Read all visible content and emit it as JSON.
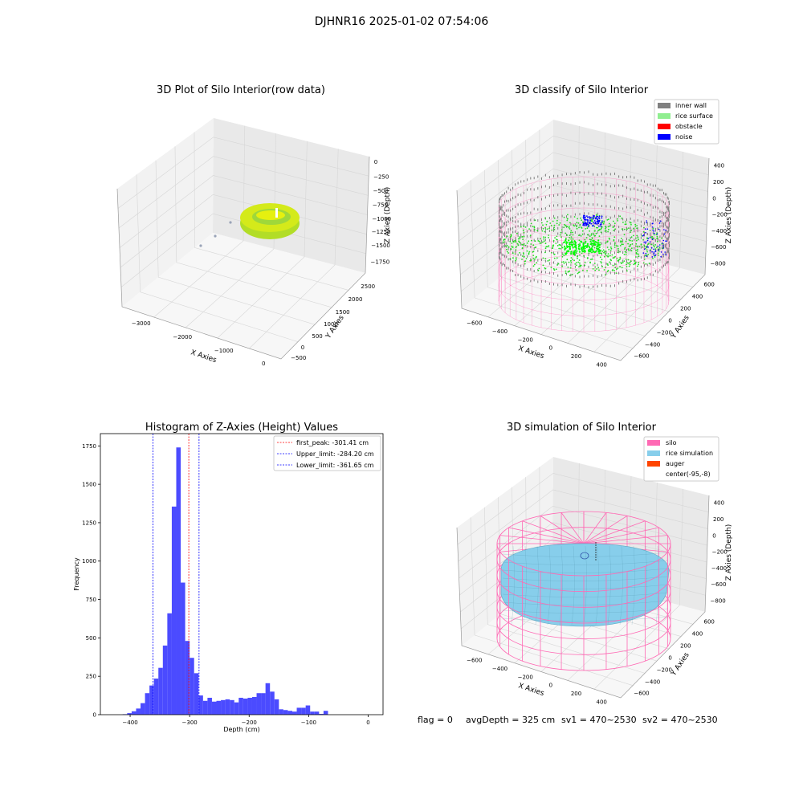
{
  "suptitle": "DJHNR16 2025-01-02 07:54:06",
  "status_line": {
    "flag": "flag = 0",
    "avg_depth": "avgDepth = 325 cm",
    "sv1": "sv1 = 470~2530",
    "sv2": "sv2 = 470~2530"
  },
  "colors": {
    "inner_wall": "#808080",
    "rice_surface": "#90ee90",
    "obstacle": "#ff0000",
    "noise": "#0000ff",
    "silo": "#ff69b4",
    "rice_simulation": "#87ceeb",
    "auger": "#ff4500",
    "hist_bar": "#4b4bff",
    "first_peak_line": "#ff0000",
    "limit_line": "#0000ff"
  },
  "chart_data": [
    {
      "type": "scatter",
      "title": "3D Plot of Silo Interior(row data)",
      "xlabel": "X Axies",
      "ylabel": "Y Axies",
      "zlabel": "Z Axies (Depth)",
      "x_ticks": [
        "−3000",
        "−2000",
        "−1000",
        "0"
      ],
      "y_ticks": [
        "−500",
        "0",
        "500",
        "1000",
        "1500",
        "2000",
        "2500"
      ],
      "z_ticks": [
        "0",
        "−250",
        "−500",
        "−750",
        "−1000",
        "−1250",
        "−1500",
        "−1750"
      ],
      "grid": true
    },
    {
      "type": "scatter",
      "title": "3D classify of Silo Interior",
      "xlabel": "X Axies",
      "ylabel": "Y Axies",
      "zlabel": "Z Axies (Depth)",
      "x_ticks": [
        "−600",
        "−400",
        "−200",
        "0",
        "200",
        "400"
      ],
      "y_ticks": [
        "−600",
        "−400",
        "−200",
        "0",
        "200",
        "400",
        "600"
      ],
      "z_ticks": [
        "400",
        "200",
        "0",
        "−200",
        "−400",
        "−600",
        "−800"
      ],
      "legend": [
        "inner wall",
        "rice surface",
        "obstacle",
        "noise"
      ],
      "legend_position": "top-right",
      "grid": true
    },
    {
      "type": "bar",
      "title": "Histogram of Z-Axies (Height) Values",
      "xlabel": "Depth (cm)",
      "ylabel": "Frequency",
      "xlim": [
        -450,
        25
      ],
      "ylim": [
        0,
        1830
      ],
      "x_ticks": [
        -400,
        -300,
        -200,
        -100,
        0
      ],
      "y_ticks": [
        0,
        250,
        500,
        750,
        1000,
        1250,
        1500,
        1750
      ],
      "bin_width": 7.5,
      "bin_start": -412.5,
      "values": [
        3,
        10,
        22,
        40,
        75,
        140,
        190,
        235,
        305,
        450,
        660,
        1355,
        1740,
        860,
        480,
        370,
        270,
        125,
        90,
        110,
        85,
        90,
        95,
        100,
        95,
        80,
        110,
        105,
        110,
        115,
        140,
        140,
        205,
        150,
        100,
        35,
        30,
        25,
        20,
        45,
        45,
        60,
        20,
        20,
        5,
        25
      ],
      "vlines": [
        {
          "label": "first_peak: -301.41 cm",
          "x": -301.41,
          "color": "#ff0000"
        },
        {
          "label": "Upper_limit: -284.20 cm",
          "x": -284.2,
          "color": "#0000ff"
        },
        {
          "label": "Lower_limit: -361.65 cm",
          "x": -361.65,
          "color": "#0000ff"
        }
      ],
      "legend_position": "top-right"
    },
    {
      "type": "scatter",
      "title": "3D simulation of Silo Interior",
      "xlabel": "X Axies",
      "ylabel": "Y Axies",
      "zlabel": "Z Axies (Depth)",
      "x_ticks": [
        "−600",
        "−400",
        "−200",
        "0",
        "200",
        "400"
      ],
      "y_ticks": [
        "−600",
        "−400",
        "−200",
        "0",
        "200",
        "400",
        "600"
      ],
      "z_ticks": [
        "400",
        "200",
        "0",
        "−200",
        "−400",
        "−600",
        "−800"
      ],
      "legend": [
        "silo",
        "rice simulation",
        "auger",
        "center(-95,-8)"
      ],
      "legend_position": "top-right",
      "grid": true
    }
  ]
}
